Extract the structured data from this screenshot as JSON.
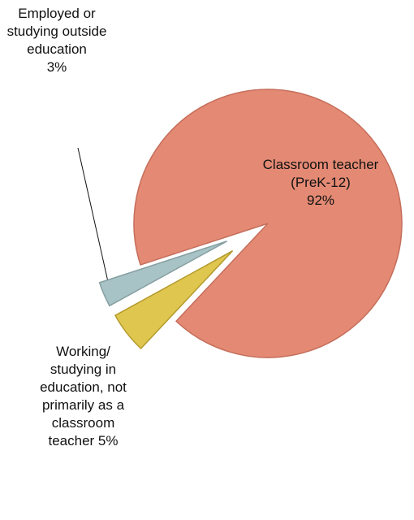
{
  "chart_data": {
    "type": "pie",
    "categories": [
      "Classroom teacher (PreK-12)",
      "Working/ studying in education, not primarily as a classroom teacher",
      "Employed or studying outside education"
    ],
    "values": [
      92,
      5,
      3
    ],
    "value_labels": [
      "92%",
      "5%",
      "3%"
    ],
    "colors": [
      "#e48a74",
      "#dfc64f",
      "#a8c3c5"
    ]
  }
}
